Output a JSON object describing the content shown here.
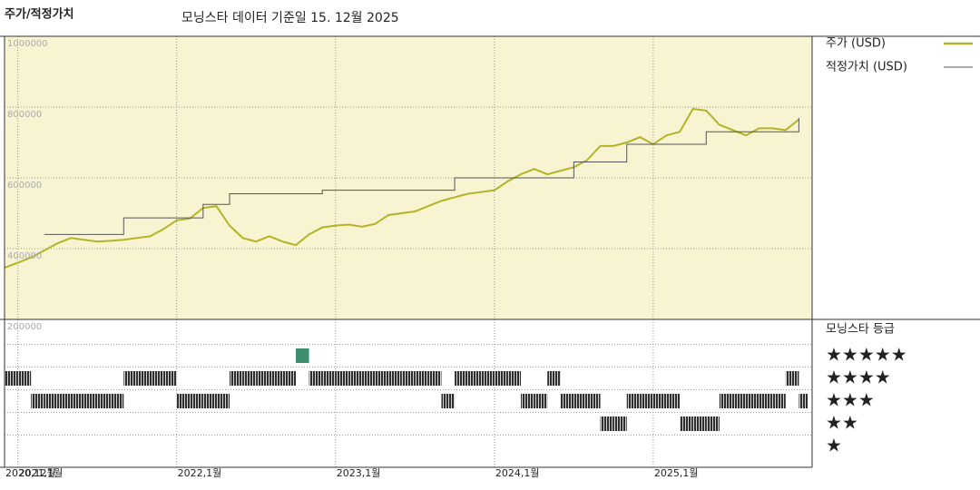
{
  "chart_data": [
    {
      "type": "line",
      "title": "주가/적정가치",
      "subtitle": "모닝스타 데이터 기준일 15. 12월 2025",
      "x": [
        "2020-12",
        "2021-01",
        "2021-02",
        "2021-03",
        "2021-04",
        "2021-05",
        "2021-06",
        "2021-07",
        "2021-08",
        "2021-09",
        "2021-10",
        "2021-11",
        "2021-12",
        "2022-01",
        "2022-02",
        "2022-03",
        "2022-04",
        "2022-05",
        "2022-06",
        "2022-07",
        "2022-08",
        "2022-09",
        "2022-10",
        "2022-11",
        "2022-12",
        "2023-01",
        "2023-02",
        "2023-03",
        "2023-04",
        "2023-05",
        "2023-06",
        "2023-07",
        "2023-08",
        "2023-09",
        "2023-10",
        "2023-11",
        "2023-12",
        "2024-01",
        "2024-02",
        "2024-03",
        "2024-04",
        "2024-05",
        "2024-06",
        "2024-07",
        "2024-08",
        "2024-09",
        "2024-10",
        "2024-11",
        "2024-12",
        "2025-01",
        "2025-02",
        "2025-03",
        "2025-04",
        "2025-05",
        "2025-06",
        "2025-07",
        "2025-08",
        "2025-09",
        "2025-10",
        "2025-11",
        "2025-12"
      ],
      "series": [
        {
          "name": "주가 (USD)",
          "color": "#b3b325",
          "values": [
            346000,
            360000,
            375000,
            395000,
            415000,
            430000,
            425000,
            420000,
            422000,
            425000,
            430000,
            435000,
            455000,
            480000,
            485000,
            515000,
            520000,
            465000,
            430000,
            420000,
            435000,
            420000,
            410000,
            440000,
            460000,
            465000,
            468000,
            462000,
            470000,
            495000,
            500000,
            505000,
            520000,
            535000,
            545000,
            555000,
            560000,
            565000,
            590000,
            610000,
            625000,
            610000,
            620000,
            630000,
            650000,
            690000,
            690000,
            700000,
            715000,
            695000,
            720000,
            730000,
            795000,
            790000,
            750000,
            735000,
            720000,
            740000,
            740000,
            735000,
            765000
          ]
        },
        {
          "name": "적정가치 (USD)",
          "color": "#555555",
          "values": [
            null,
            null,
            null,
            440000,
            440000,
            440000,
            440000,
            440000,
            440000,
            487000,
            487000,
            487000,
            487000,
            487000,
            487000,
            525000,
            525000,
            555000,
            555000,
            555000,
            555000,
            555000,
            555000,
            555000,
            565000,
            565000,
            565000,
            565000,
            565000,
            565000,
            565000,
            565000,
            565000,
            565000,
            600000,
            600000,
            600000,
            600000,
            600000,
            600000,
            600000,
            600000,
            600000,
            645000,
            645000,
            645000,
            645000,
            695000,
            695000,
            695000,
            695000,
            695000,
            695000,
            730000,
            730000,
            730000,
            730000,
            730000,
            730000,
            730000,
            770000
          ]
        }
      ],
      "xlim": [
        "2020-12",
        "2026-01"
      ],
      "xticks": [
        {
          "value": "2020-12",
          "label": "2020,12월"
        },
        {
          "value": "2021-01",
          "label": "2021,1월"
        },
        {
          "value": "2022-01",
          "label": "2022,1월"
        },
        {
          "value": "2023-01",
          "label": "2023,1월"
        },
        {
          "value": "2024-01",
          "label": "2024,1월"
        },
        {
          "value": "2025-01",
          "label": "2025,1월"
        }
      ],
      "ylim": [
        200000,
        1000000
      ],
      "yticks": [
        200000,
        400000,
        600000,
        800000,
        1000000
      ],
      "grid": true,
      "background": "#f8f4d2"
    },
    {
      "type": "rating",
      "title": "모닝스타 등급",
      "x": [
        "2020-12",
        "2021-01",
        "2021-02",
        "2021-03",
        "2021-04",
        "2021-05",
        "2021-06",
        "2021-07",
        "2021-08",
        "2021-09",
        "2021-10",
        "2021-11",
        "2021-12",
        "2022-01",
        "2022-02",
        "2022-03",
        "2022-04",
        "2022-05",
        "2022-06",
        "2022-07",
        "2022-08",
        "2022-09",
        "2022-10",
        "2022-11",
        "2022-12",
        "2023-01",
        "2023-02",
        "2023-03",
        "2023-04",
        "2023-05",
        "2023-06",
        "2023-07",
        "2023-08",
        "2023-09",
        "2023-10",
        "2023-11",
        "2023-12",
        "2024-01",
        "2024-02",
        "2024-03",
        "2024-04",
        "2024-05",
        "2024-06",
        "2024-07",
        "2024-08",
        "2024-09",
        "2024-10",
        "2024-11",
        "2024-12",
        "2025-01",
        "2025-02",
        "2025-03",
        "2025-04",
        "2025-05",
        "2025-06",
        "2025-07",
        "2025-08",
        "2025-09",
        "2025-10",
        "2025-11",
        "2025-12"
      ],
      "values": [
        4,
        4,
        3,
        3,
        3,
        3,
        3,
        3,
        3,
        4,
        4,
        4,
        4,
        3,
        3,
        3,
        3,
        4,
        4,
        4,
        4,
        4,
        5,
        4,
        4,
        4,
        4,
        4,
        4,
        4,
        4,
        4,
        4,
        3,
        4,
        4,
        4,
        4,
        4,
        3,
        3,
        4,
        3,
        3,
        3,
        2,
        2,
        3,
        3,
        3,
        3,
        2,
        2,
        2,
        3,
        3,
        3,
        3,
        3,
        4,
        3
      ],
      "yticks": [
        {
          "value": 5,
          "label": "★★★★★"
        },
        {
          "value": 4,
          "label": "★★★★"
        },
        {
          "value": 3,
          "label": "★★★"
        },
        {
          "value": 2,
          "label": "★★"
        },
        {
          "value": 1,
          "label": "★"
        }
      ],
      "color": "#2e2e2e",
      "top_color": "#3f8f6f"
    }
  ]
}
